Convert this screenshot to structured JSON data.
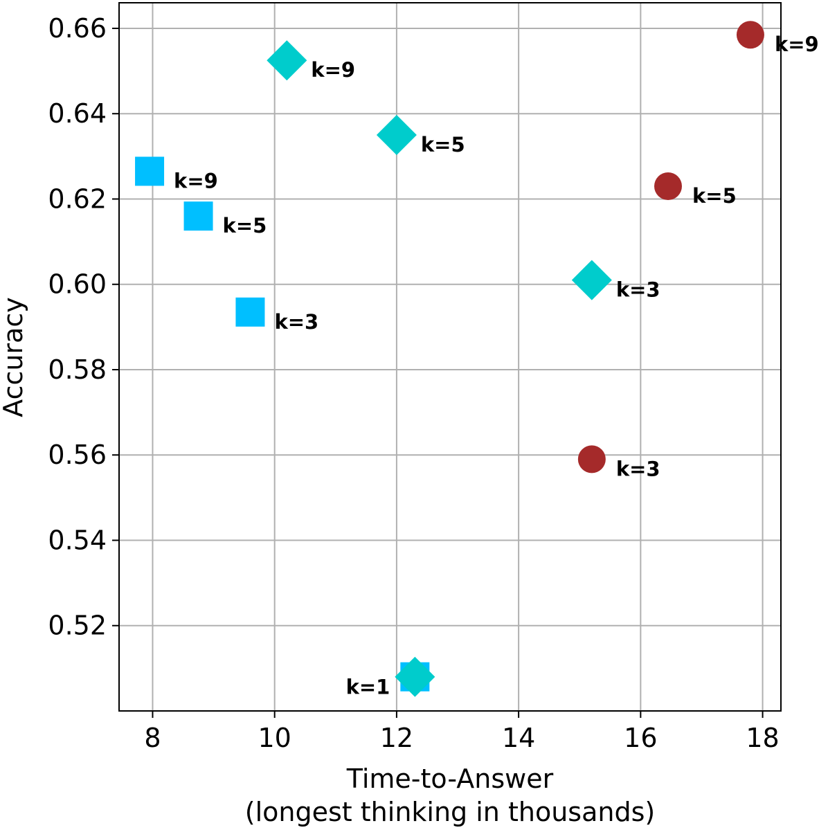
{
  "chart_data": {
    "type": "scatter",
    "title": "",
    "xlabel": "Time-to-Answer",
    "xlabel2": "(longest thinking in thousands)",
    "ylabel": "Accuracy",
    "xlim": [
      7.45,
      18.3
    ],
    "ylim": [
      0.5,
      0.666
    ],
    "xticks": [
      8,
      10,
      12,
      14,
      16,
      18
    ],
    "xtick_labels": [
      "8",
      "10",
      "12",
      "14",
      "16",
      "18"
    ],
    "yticks": [
      0.52,
      0.54,
      0.56,
      0.58,
      0.6,
      0.62,
      0.64,
      0.66
    ],
    "ytick_labels": [
      "0.52",
      "0.54",
      "0.56",
      "0.58",
      "0.60",
      "0.62",
      "0.64",
      "0.66"
    ],
    "grid": true,
    "colors": {
      "circle": "#a52a2a",
      "diamond": "#00cccc",
      "square": "#00bfff"
    },
    "series": [
      {
        "name": "circle",
        "marker": "circle",
        "color": "#a52a2a",
        "points": [
          {
            "x": 15.2,
            "y": 0.559,
            "label": "k=3"
          },
          {
            "x": 16.45,
            "y": 0.623,
            "label": "k=5"
          },
          {
            "x": 17.8,
            "y": 0.6585,
            "label": "k=9"
          }
        ]
      },
      {
        "name": "square",
        "marker": "square",
        "color": "#00bfff",
        "points": [
          {
            "x": 12.3,
            "y": 0.508,
            "label": ""
          },
          {
            "x": 9.6,
            "y": 0.5935,
            "label": "k=3"
          },
          {
            "x": 8.75,
            "y": 0.616,
            "label": "k=5"
          },
          {
            "x": 7.95,
            "y": 0.6265,
            "label": "k=9"
          }
        ]
      },
      {
        "name": "diamond",
        "marker": "diamond",
        "color": "#00cccc",
        "points": [
          {
            "x": 12.3,
            "y": 0.508,
            "label": "k=1"
          },
          {
            "x": 15.2,
            "y": 0.601,
            "label": "k=3"
          },
          {
            "x": 12.0,
            "y": 0.635,
            "label": "k=5"
          },
          {
            "x": 10.2,
            "y": 0.6525,
            "label": "k=9"
          }
        ]
      },
      {
        "name": "circle-k1",
        "marker": "circle",
        "color": "#a52a2a",
        "points": [
          {
            "x": 12.3,
            "y": 0.508,
            "label": ""
          }
        ]
      }
    ]
  }
}
